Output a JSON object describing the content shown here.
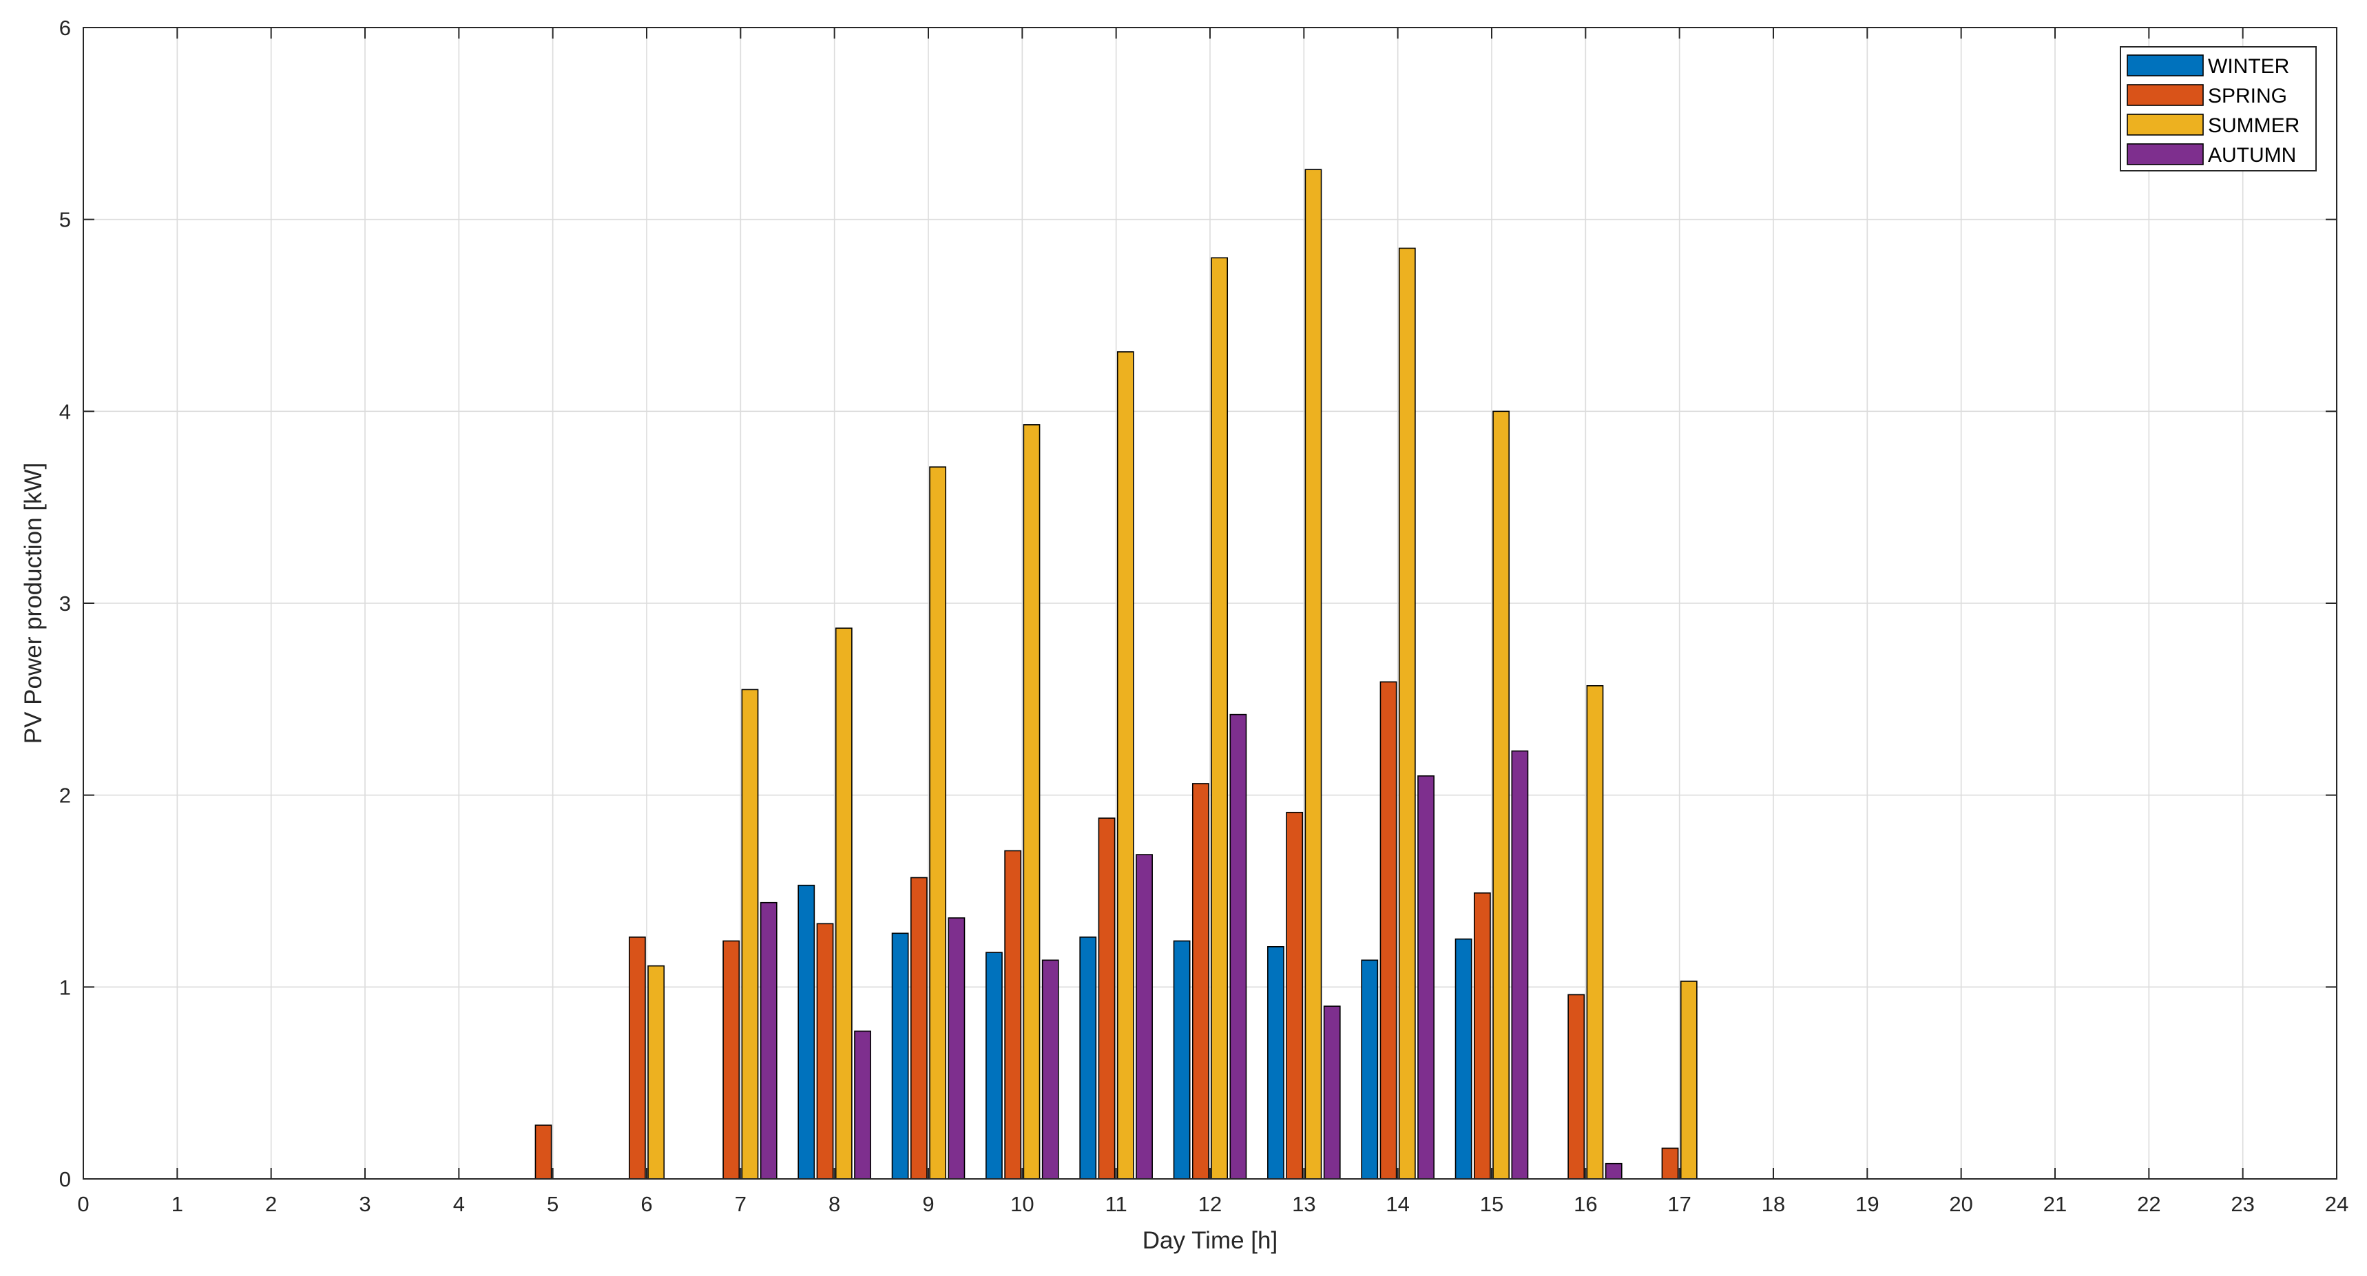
{
  "chart_data": {
    "type": "bar",
    "xlabel": "Day Time [h]",
    "ylabel": "PV Power production [kW]",
    "xlim": [
      0,
      24
    ],
    "ylim": [
      0,
      6
    ],
    "xticks": [
      "0",
      "1",
      "2",
      "3",
      "4",
      "5",
      "6",
      "7",
      "8",
      "9",
      "10",
      "11",
      "12",
      "13",
      "14",
      "15",
      "16",
      "17",
      "18",
      "19",
      "20",
      "21",
      "22",
      "23",
      "24"
    ],
    "yticks": [
      "0",
      "1",
      "2",
      "3",
      "4",
      "5",
      "6"
    ],
    "grid": true,
    "legend_position": "top-right",
    "categories": [
      5,
      6,
      7,
      8,
      9,
      10,
      11,
      12,
      13,
      14,
      15,
      16,
      17
    ],
    "series": [
      {
        "name": "WINTER",
        "color": "#0072BD",
        "values": [
          0,
          0,
          0,
          1.53,
          1.28,
          1.18,
          1.26,
          1.24,
          1.21,
          1.14,
          1.25,
          0,
          0
        ]
      },
      {
        "name": "SPRING",
        "color": "#D95319",
        "values": [
          0.28,
          1.26,
          1.24,
          1.33,
          1.57,
          1.71,
          1.88,
          2.06,
          1.91,
          2.59,
          1.49,
          0.96,
          0.16
        ]
      },
      {
        "name": "SUMMER",
        "color": "#EDB120",
        "values": [
          0,
          1.11,
          2.55,
          2.87,
          3.71,
          3.93,
          4.31,
          4.8,
          5.26,
          4.85,
          4.0,
          2.57,
          1.03
        ]
      },
      {
        "name": "AUTUMN",
        "color": "#7E2F8E",
        "values": [
          0,
          0,
          1.44,
          0.77,
          1.36,
          1.14,
          1.69,
          2.42,
          0.9,
          2.1,
          2.23,
          0.08,
          0
        ]
      }
    ]
  }
}
